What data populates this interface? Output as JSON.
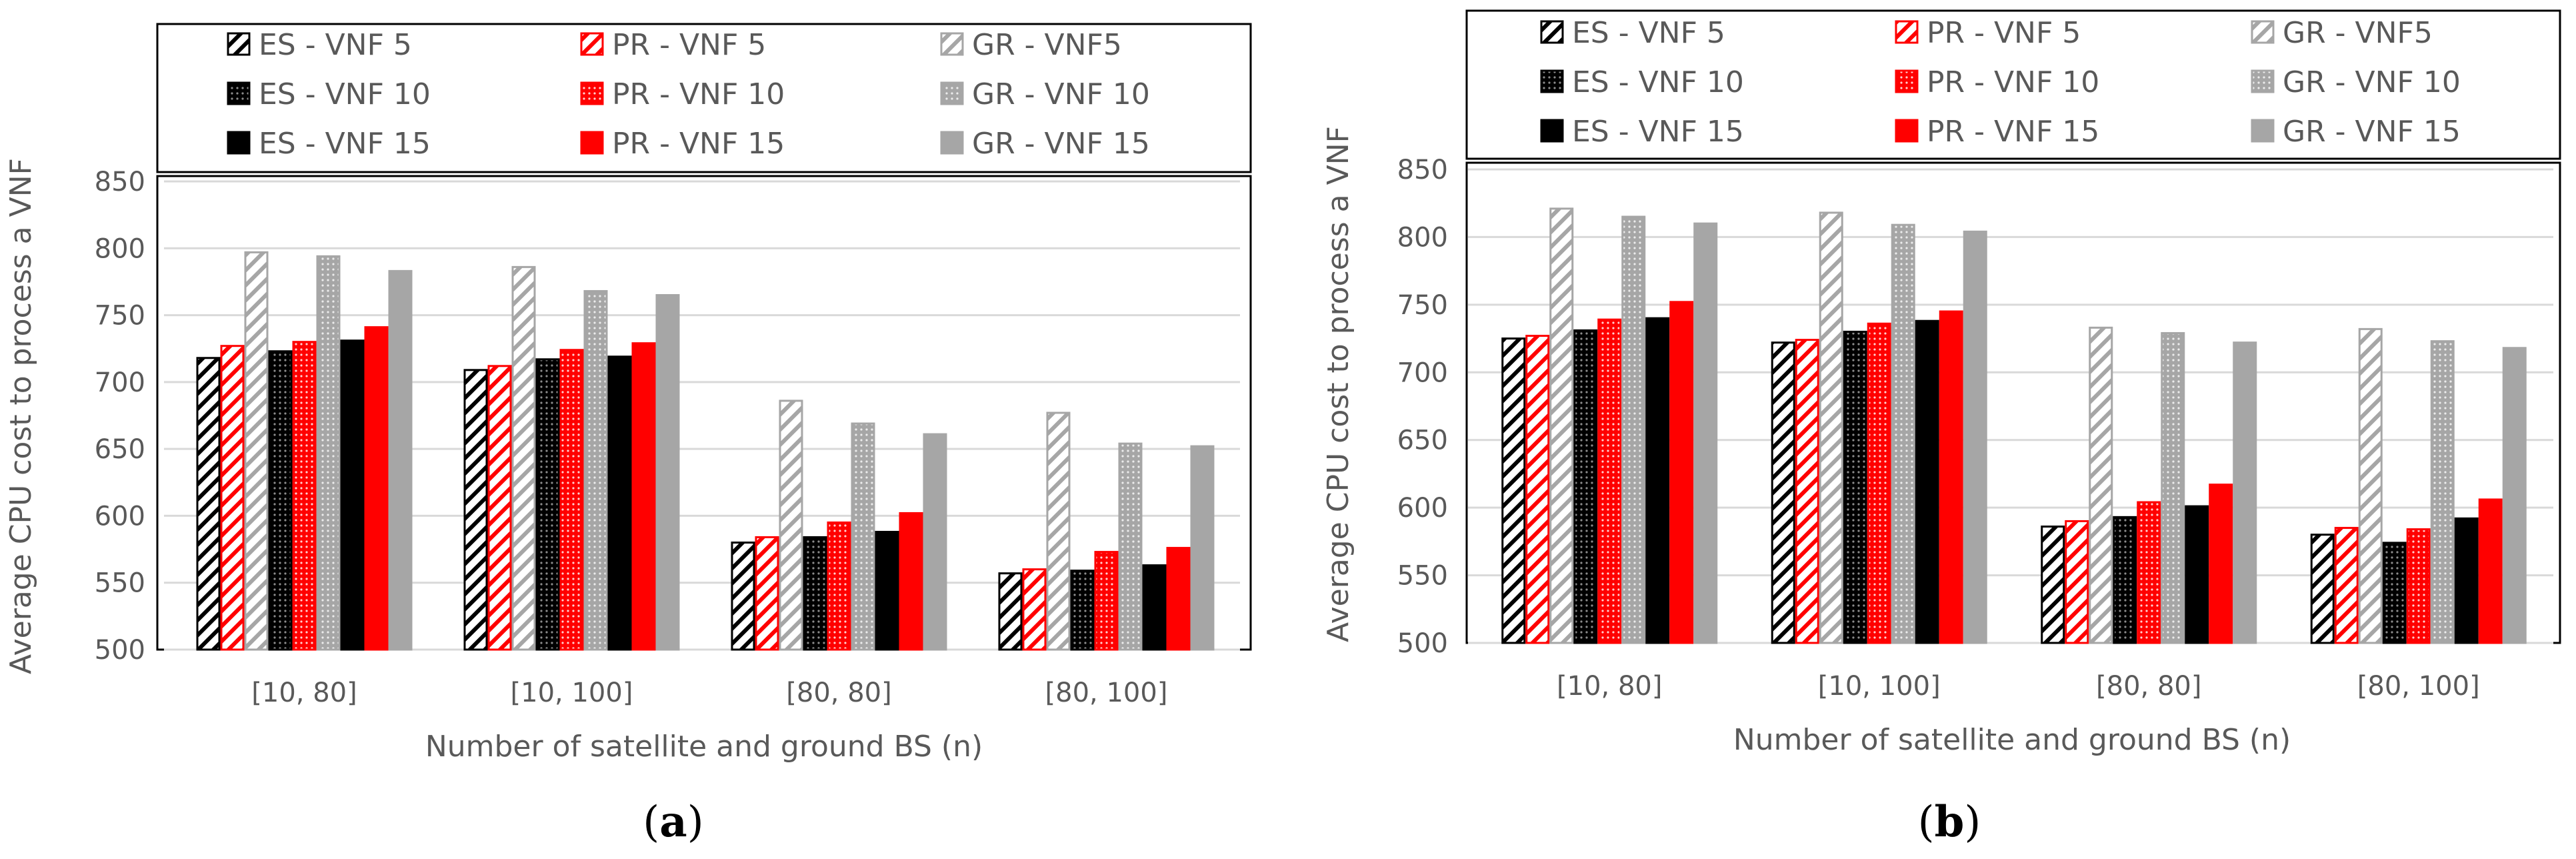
{
  "series_names": [
    "ES - VNF 5",
    "PR - VNF 5",
    "GR - VNF5",
    "ES - VNF 10",
    "PR - VNF 10",
    "GR - VNF 10",
    "ES - VNF 15",
    "PR - VNF 15",
    "GR - VNF 15"
  ],
  "colors": {
    "es": "#000000",
    "pr": "#ff0000",
    "gr": "#a6a6a6",
    "gridline": "#d9d9d9",
    "frame": "#000000"
  },
  "chart_data": [
    {
      "type": "bar",
      "caption_open": "(",
      "caption_letter": "a",
      "caption_close": ")",
      "xlabel": "Number of satellite and ground BS (n)",
      "ylabel": "Average CPU cost to process a VNF",
      "ylim": [
        500,
        850
      ],
      "yticks": [
        "500",
        "550",
        "600",
        "650",
        "700",
        "750",
        "800",
        "850"
      ],
      "categories": [
        "[10, 80]",
        "[10, 100]",
        "[80, 80]",
        "[80, 100]"
      ],
      "series": [
        {
          "name": "ES - VNF 5",
          "values": [
            718,
            709,
            580,
            557
          ]
        },
        {
          "name": "PR - VNF 5",
          "values": [
            727,
            712,
            584,
            560
          ]
        },
        {
          "name": "GR - VNF5",
          "values": [
            797,
            786,
            686,
            677
          ]
        },
        {
          "name": "ES - VNF 10",
          "values": [
            723,
            717,
            584,
            559
          ]
        },
        {
          "name": "PR - VNF 10",
          "values": [
            730,
            724,
            595,
            573
          ]
        },
        {
          "name": "GR - VNF 10",
          "values": [
            794,
            768,
            669,
            654
          ]
        },
        {
          "name": "ES - VNF 15",
          "values": [
            731,
            719,
            588,
            563
          ]
        },
        {
          "name": "PR - VNF 15",
          "values": [
            741,
            729,
            602,
            576
          ]
        },
        {
          "name": "GR - VNF 15",
          "values": [
            783,
            765,
            661,
            652
          ]
        }
      ]
    },
    {
      "type": "bar",
      "caption_open": "(",
      "caption_letter": "b",
      "caption_close": ")",
      "xlabel": "Number of satellite and ground BS (n)",
      "ylabel": "Average CPU cost to process a VNF",
      "ylim": [
        500,
        850
      ],
      "yticks": [
        "500",
        "550",
        "600",
        "650",
        "700",
        "750",
        "800",
        "850"
      ],
      "categories": [
        "[10, 80]",
        "[10, 100]",
        "[80, 80]",
        "[80, 100]"
      ],
      "series": [
        {
          "name": "ES - VNF 5",
          "values": [
            725,
            722,
            586,
            580
          ]
        },
        {
          "name": "PR - VNF 5",
          "values": [
            727,
            724,
            590,
            585
          ]
        },
        {
          "name": "GR - VNF5",
          "values": [
            821,
            818,
            733,
            732
          ]
        },
        {
          "name": "ES - VNF 10",
          "values": [
            731,
            730,
            593,
            574
          ]
        },
        {
          "name": "PR - VNF 10",
          "values": [
            739,
            736,
            604,
            584
          ]
        },
        {
          "name": "GR - VNF 10",
          "values": [
            815,
            809,
            729,
            723
          ]
        },
        {
          "name": "ES - VNF 15",
          "values": [
            740,
            738,
            601,
            592
          ]
        },
        {
          "name": "PR - VNF 15",
          "values": [
            752,
            745,
            617,
            606
          ]
        },
        {
          "name": "GR - VNF 15",
          "values": [
            810,
            804,
            722,
            718
          ]
        }
      ]
    }
  ]
}
